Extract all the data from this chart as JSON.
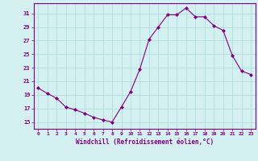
{
  "x": [
    0,
    1,
    2,
    3,
    4,
    5,
    6,
    7,
    8,
    9,
    10,
    11,
    12,
    13,
    14,
    15,
    16,
    17,
    18,
    19,
    20,
    21,
    22,
    23
  ],
  "y": [
    20.0,
    19.2,
    18.5,
    17.2,
    16.8,
    16.3,
    15.7,
    15.3,
    15.0,
    17.2,
    19.5,
    22.8,
    27.2,
    29.0,
    30.8,
    30.8,
    31.8,
    30.5,
    30.5,
    29.2,
    28.5,
    24.8,
    22.5,
    22.0
  ],
  "line_color": "#800080",
  "marker_color": "#800080",
  "bg_color": "#d4f0f0",
  "grid_color": "#b0dede",
  "xlabel": "Windchill (Refroidissement éolien,°C)",
  "xlabel_color": "#800080",
  "tick_color": "#800080",
  "ylim": [
    14.0,
    32.5
  ],
  "xlim": [
    -0.5,
    23.5
  ],
  "yticks": [
    15,
    17,
    19,
    21,
    23,
    25,
    27,
    29,
    31
  ],
  "xticks": [
    0,
    1,
    2,
    3,
    4,
    5,
    6,
    7,
    8,
    9,
    10,
    11,
    12,
    13,
    14,
    15,
    16,
    17,
    18,
    19,
    20,
    21,
    22,
    23
  ],
  "spine_color": "#800080",
  "title": ""
}
